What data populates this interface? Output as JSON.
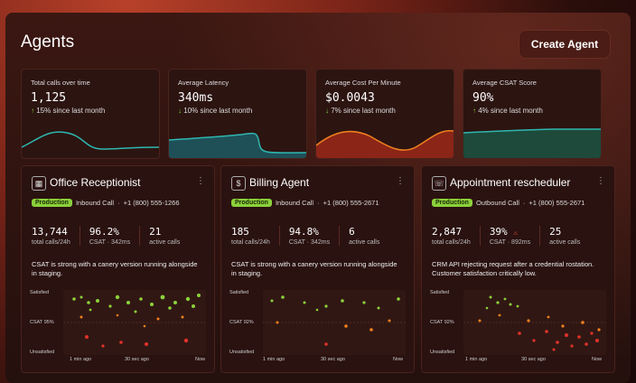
{
  "header": {
    "title": "Agents",
    "create_label": "Create Agent"
  },
  "stats": [
    {
      "label": "Total calls over time",
      "value": "1,125",
      "delta": "15% since last month",
      "delta_dir": "up"
    },
    {
      "label": "Average Latency",
      "value": "340ms",
      "delta": "10% since last month",
      "delta_dir": "down"
    },
    {
      "label": "Average Cost Per Minute",
      "value": "$0.0043",
      "delta": "7% since last month",
      "delta_dir": "down"
    },
    {
      "label": "Average CSAT Score",
      "value": "90%",
      "delta": "4% since last month",
      "delta_dir": "up"
    }
  ],
  "agents": [
    {
      "name": "Office Receptionist",
      "icon": "building-icon",
      "status": "Production",
      "call_type": "Inbound Call",
      "phone": "+1 (800) 555-1266",
      "total_calls": "13,744",
      "total_calls_label": "total calls/24h",
      "csat": "96.2%",
      "csat_label": "CSAT · 342ms",
      "active": "21",
      "active_label": "active calls",
      "description": "CSAT is strong with a canery version running alongside in staging.",
      "y_top": "Satisfied",
      "y_mid": "CSAT 95%",
      "y_bottom": "Unsatisfied",
      "x_labels": [
        "1 min ago",
        "30 sec ago",
        "Now"
      ]
    },
    {
      "name": "Billing Agent",
      "icon": "dollar-icon",
      "status": "Production",
      "call_type": "Inbound Call",
      "phone": "+1 (800) 555-2671",
      "total_calls": "185",
      "total_calls_label": "total calls/24h",
      "csat": "94.8%",
      "csat_label": "CSAT · 342ms",
      "active": "6",
      "active_label": "active calls",
      "description": "CSAT is strong with a canery version running alongside in staging.",
      "y_top": "Satisfied",
      "y_mid": "CSAT 92%",
      "y_bottom": "Unsatisfied",
      "x_labels": [
        "1 min ago",
        "30 sec ago",
        "Now"
      ]
    },
    {
      "name": "Appointment rescheduler",
      "icon": "phone-icon",
      "status": "Production",
      "call_type": "Outbound Call",
      "phone": "+1 (800) 555-2671",
      "total_calls": "2,847",
      "total_calls_label": "total calls/24h",
      "csat": "39%",
      "csat_label": "CSAT · 892ms",
      "active": "25",
      "active_label": "active calls",
      "description": "CRM API rejecting request after a credential rostation. Customer satisfaction critically low.",
      "y_top": "Satisfied",
      "y_mid": "CSAT 92%",
      "y_bottom": "Unsatisfied",
      "x_labels": [
        "1 min ago",
        "30 sec ago",
        "Now"
      ]
    }
  ],
  "colors": {
    "green": "#8bd13a",
    "orange": "#f0801f",
    "red": "#e0322a",
    "teal": "#2fb7b0",
    "accent": "#4a1c15"
  }
}
